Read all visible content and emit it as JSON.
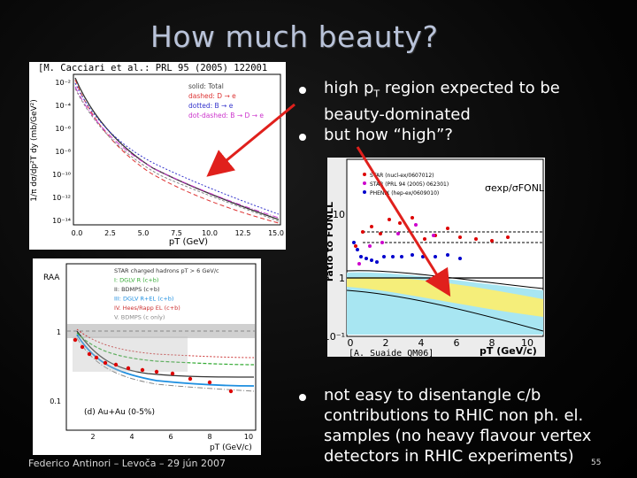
{
  "slide": {
    "title": "How much beauty?",
    "footer": "Federico Antinori – Levoča – 29 jún 2007",
    "page_number": "55"
  },
  "plot_top_left": {
    "citation": "[M. Cacciari et al.: PRL 95 (2005) 122001",
    "legend": [
      "solid: Total",
      "dashed: D → e",
      "dotted: B → e",
      "dot-dashed: B → D → e"
    ],
    "y_ticks": [
      "10⁻²",
      "10⁻⁴",
      "10⁻⁶",
      "10⁻⁸",
      "10⁻¹⁰",
      "10⁻¹²",
      "10⁻¹⁴"
    ],
    "x_ticks": [
      "0.0",
      "2.5",
      "5.0",
      "7.5",
      "10.0",
      "12.5",
      "15.0"
    ],
    "ylabel": "1/π dσ/dp²T dy (mb/GeV²)",
    "xlabel": "pT (GeV)"
  },
  "plot_bottom_left": {
    "ylabel": "RAA",
    "legend": [
      "STAR charged hadrons pT > 6 GeV/c",
      "I:  DGLV R (c+b)",
      "II:  BDMPS (c+b)",
      "III:  DGLV R+EL (c+b)",
      "IV.  Hees/Rapp EL (c+b)",
      "V.  BDMPS (c only)"
    ],
    "y_ticks": [
      "1",
      "0.1"
    ],
    "x_ticks": [
      "2",
      "4",
      "6",
      "8",
      "10"
    ],
    "xlabel": "pT (GeV/c)",
    "panel_label": "(d) Au+Au (0-5%)"
  },
  "plot_right": {
    "ylabel": "ratio to FONLL",
    "legend": [
      "STAR (nucl-ex/0607012)",
      "STAR (PRL 94 (2005) 062301)",
      "PHENIX (hep-ex/0609010)"
    ],
    "ratio_label": "σexp/σFONLL",
    "y_ticks": [
      "10",
      "1",
      "10⁻¹"
    ],
    "x_ticks": [
      "0",
      "2",
      "4",
      "6",
      "8",
      "10"
    ],
    "xlabel": "pT (GeV/c)",
    "citation": "[A. Suaide QM06]"
  },
  "bullets_top": [
    {
      "pre": "high p",
      "sub": "T",
      "post": " region expected to be beauty-dominated"
    },
    {
      "pre": "but how “high”?",
      "sub": "",
      "post": ""
    }
  ],
  "bullets_bottom": [
    {
      "text": "not easy to disentangle c/b contributions to RHIC non ph. el. samples (no heavy flavour vertex detectors in RHIC experiments)"
    }
  ],
  "colors": {
    "title": "#b9c3d9",
    "arrow": "#e0201c",
    "background": "#000000"
  }
}
